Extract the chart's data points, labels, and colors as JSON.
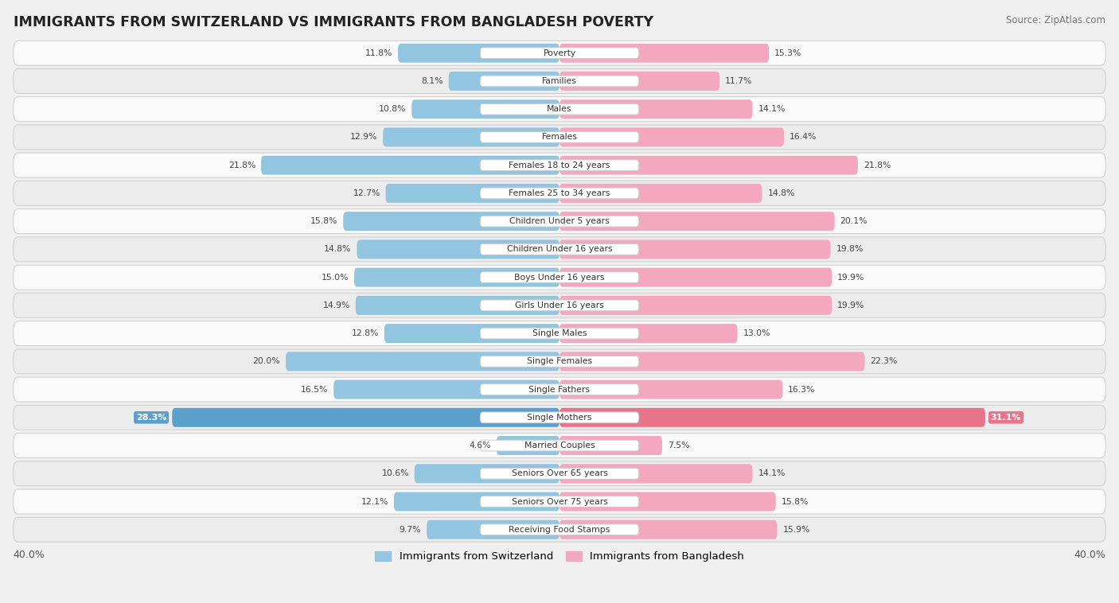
{
  "title": "IMMIGRANTS FROM SWITZERLAND VS IMMIGRANTS FROM BANGLADESH POVERTY",
  "source": "Source: ZipAtlas.com",
  "categories": [
    "Poverty",
    "Families",
    "Males",
    "Females",
    "Females 18 to 24 years",
    "Females 25 to 34 years",
    "Children Under 5 years",
    "Children Under 16 years",
    "Boys Under 16 years",
    "Girls Under 16 years",
    "Single Males",
    "Single Females",
    "Single Fathers",
    "Single Mothers",
    "Married Couples",
    "Seniors Over 65 years",
    "Seniors Over 75 years",
    "Receiving Food Stamps"
  ],
  "switzerland": [
    11.8,
    8.1,
    10.8,
    12.9,
    21.8,
    12.7,
    15.8,
    14.8,
    15.0,
    14.9,
    12.8,
    20.0,
    16.5,
    28.3,
    4.6,
    10.6,
    12.1,
    9.7
  ],
  "bangladesh": [
    15.3,
    11.7,
    14.1,
    16.4,
    21.8,
    14.8,
    20.1,
    19.8,
    19.9,
    19.9,
    13.0,
    22.3,
    16.3,
    31.1,
    7.5,
    14.1,
    15.8,
    15.9
  ],
  "switzerland_color": "#92C5E0",
  "bangladesh_color": "#F4A8C0",
  "switzerland_highlight_color": "#5B9FCC",
  "bangladesh_highlight_color": "#E8748A",
  "label_switzerland": "Immigrants from Switzerland",
  "label_bangladesh": "Immigrants from Bangladesh",
  "max_val": 40.0,
  "bg_color": "#f0f0f0",
  "row_even_color": "#fafafa",
  "row_odd_color": "#ececec"
}
